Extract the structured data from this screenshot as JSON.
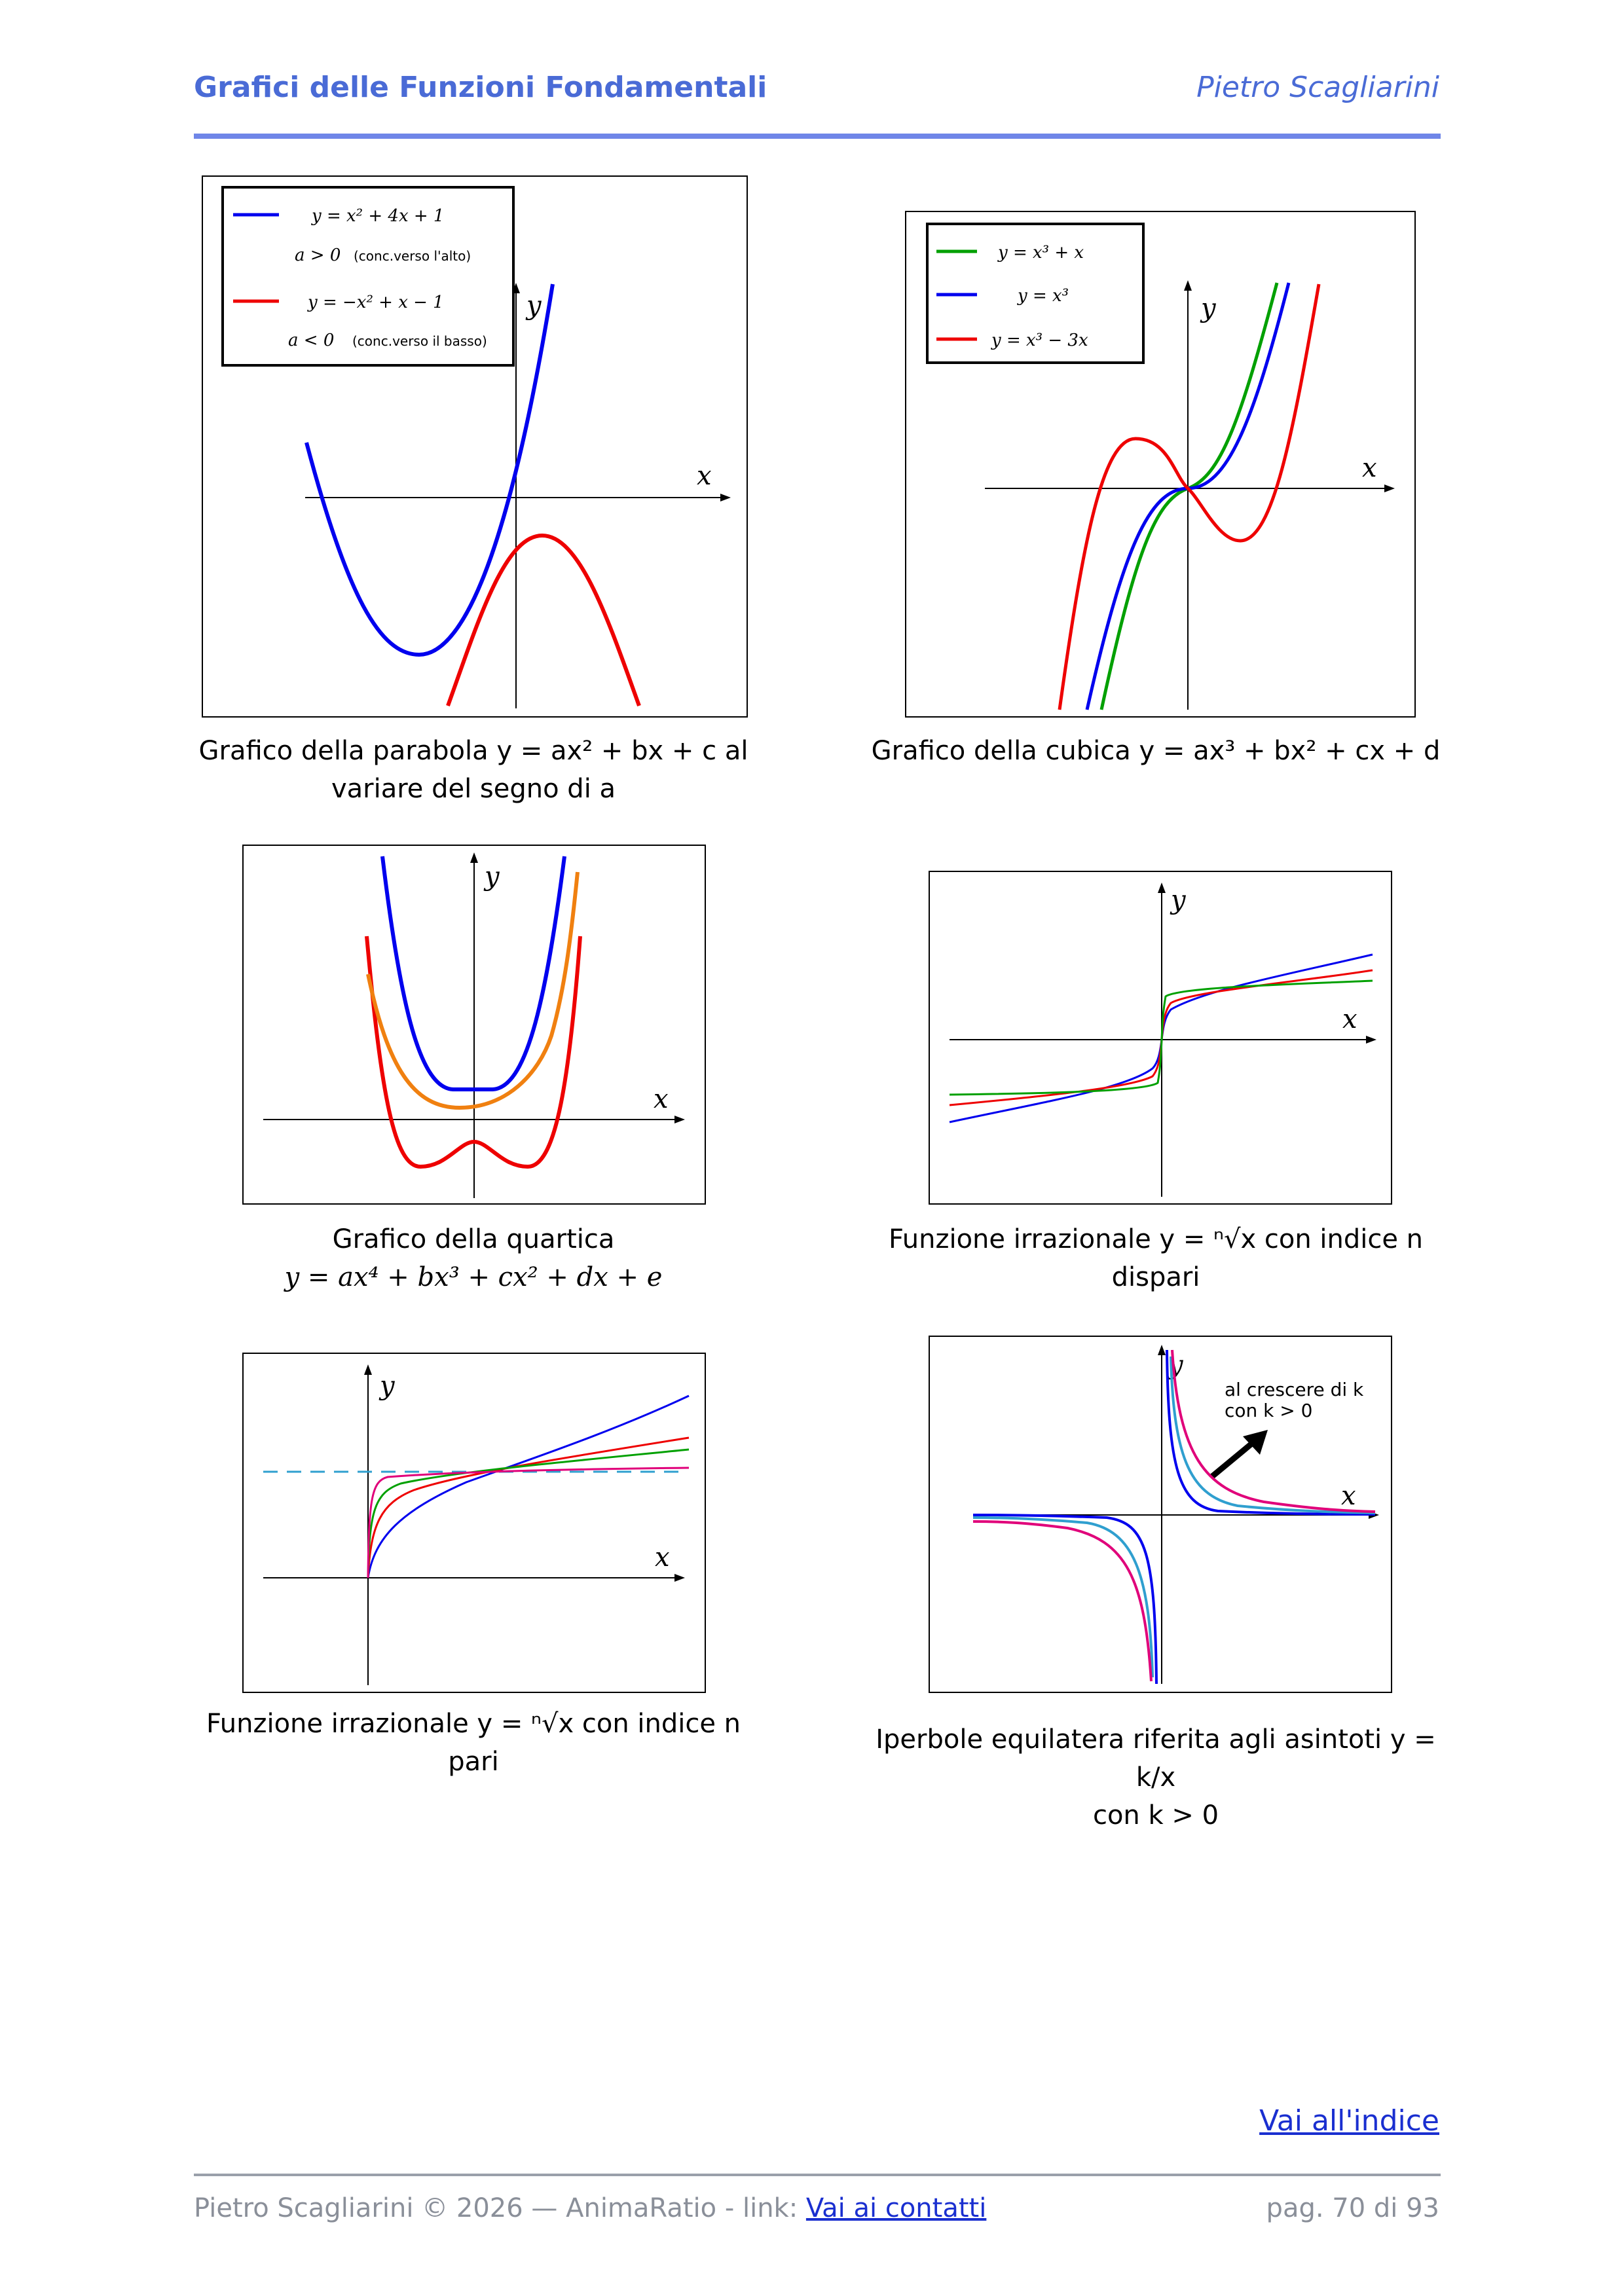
{
  "header": {
    "title": "Grafici delle Funzioni Fondamentali",
    "author": "Pietro Scagliarini"
  },
  "panels": {
    "parabola": {
      "legend": {
        "e1": "y = x² + 4x + 1",
        "e1_note_math": "a > 0",
        "e1_note": "(conc.verso l'alto)",
        "e2": "y = −x² + x − 1",
        "e2_note_math": "a < 0",
        "e2_note": "(conc.verso il basso)"
      },
      "x_label": "x",
      "y_label": "y",
      "caption_line1": "Grafico della parabola y = ax² + bx + c al",
      "caption_line2": "variare del segno di a"
    },
    "cubic": {
      "legend": {
        "e1": "y = x³ + x",
        "e2": "y = x³",
        "e3": "y = x³ − 3x"
      },
      "x_label": "x",
      "y_label": "y",
      "caption": "Grafico della cubica y = ax³ + bx² + cx + d"
    },
    "quartic": {
      "x_label": "x",
      "y_label": "y",
      "caption_line1": "Grafico della quartica",
      "caption_line2": "y = ax⁴ + bx³ + cx² + dx + e"
    },
    "root_odd": {
      "x_label": "x",
      "y_label": "y",
      "caption_line1": "Funzione irrazionale y = ⁿ√x   con indice n",
      "caption_line2": "dispari"
    },
    "root_even": {
      "x_label": "x",
      "y_label": "y",
      "caption_line1": "Funzione irrazionale y = ⁿ√x   con indice n",
      "caption_line2": "pari"
    },
    "hyperbola": {
      "x_label": "x",
      "y_label": "y",
      "annotation_line1": "al crescere di k",
      "annotation_line2": "con k > 0",
      "caption_line1": "Iperbole equilatera riferita agli asintoti y = k/x",
      "caption_line2": "con k > 0"
    }
  },
  "colors": {
    "blue": "#0000ee",
    "red": "#ee0000",
    "green": "#00a000",
    "orange": "#f08010",
    "magenta": "#e0007a",
    "cyan": "#2f9fcf",
    "header": "#4a6bd6"
  },
  "footer": {
    "index_link": "Vai all'indice",
    "left_text": "Pietro Scagliarini ©  2026 — AnimaRatio -  link:",
    "contacts_link": "Vai ai contatti",
    "page_text": "pag.  70  di 93"
  }
}
